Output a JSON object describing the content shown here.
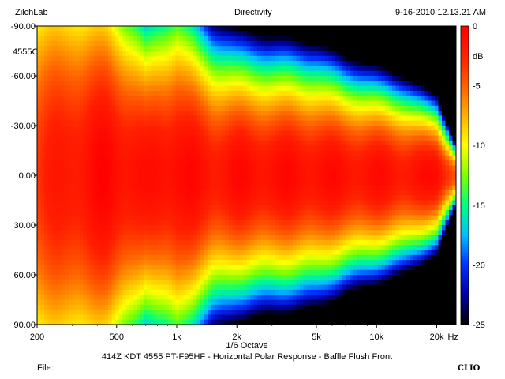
{
  "header": {
    "brand": "ZilchLab",
    "title": "Directivity",
    "timestamp": "9-16-2010 12.13.21 AM",
    "model": "4555C"
  },
  "footer": {
    "file_label": "File:",
    "logo": "CLIO"
  },
  "colors": {
    "scale": [
      "#000000",
      "#0000a0",
      "#0030ff",
      "#00c0ff",
      "#00ff80",
      "#80ff00",
      "#ffff00",
      "#ffb000",
      "#ff6000",
      "#ff2000",
      "#ff0000"
    ]
  },
  "chart_data": {
    "type": "heatmap",
    "title": "414Z KDT 4555 PT-F95HF - Horizontal Polar Response - Baffle Flush Front",
    "xlabel": "1/6 Octave",
    "x_scale": "log",
    "xlim": [
      200,
      25000
    ],
    "x_ticks": [
      {
        "value": 200,
        "label": "200"
      },
      {
        "value": 500,
        "label": "500"
      },
      {
        "value": 1000,
        "label": "1k"
      },
      {
        "value": 2000,
        "label": "2k"
      },
      {
        "value": 5000,
        "label": "5k"
      },
      {
        "value": 10000,
        "label": "10k"
      },
      {
        "value": 20000,
        "label": "20k"
      }
    ],
    "x_unit": "Hz",
    "ylim": [
      -90,
      90
    ],
    "y_ticks": [
      {
        "value": -90,
        "label": "-90.00"
      },
      {
        "value": -60,
        "label": "-60.00"
      },
      {
        "value": -30,
        "label": "-30.00"
      },
      {
        "value": 0,
        "label": "0.00"
      },
      {
        "value": 30,
        "label": "30.00"
      },
      {
        "value": 60,
        "label": "60.00"
      },
      {
        "value": 90,
        "label": "90.00"
      }
    ],
    "colorbar": {
      "range": [
        -25,
        0
      ],
      "unit": "dB",
      "ticks": [
        {
          "value": 0,
          "label": "0"
        },
        {
          "value": -5,
          "label": "-5"
        },
        {
          "value": -10,
          "label": "-10"
        },
        {
          "value": -15,
          "label": "-15"
        },
        {
          "value": -20,
          "label": "-20"
        },
        {
          "value": -25,
          "label": "-25"
        }
      ]
    },
    "beamwidth_profile": {
      "frequencies": [
        200,
        300,
        450,
        700,
        1000,
        1500,
        2000,
        3000,
        5000,
        7000,
        10000,
        14000,
        20000,
        25000
      ],
      "half_angle_6db": [
        88,
        82,
        75,
        55,
        62,
        48,
        44,
        42,
        40,
        36,
        33,
        30,
        24,
        10
      ],
      "peak_db": [
        -3,
        -1.5,
        -0.5,
        -1.5,
        -0.5,
        -1.5,
        -1,
        -1,
        -1,
        -1.2,
        -1.2,
        -1.5,
        -1,
        -4
      ]
    }
  }
}
